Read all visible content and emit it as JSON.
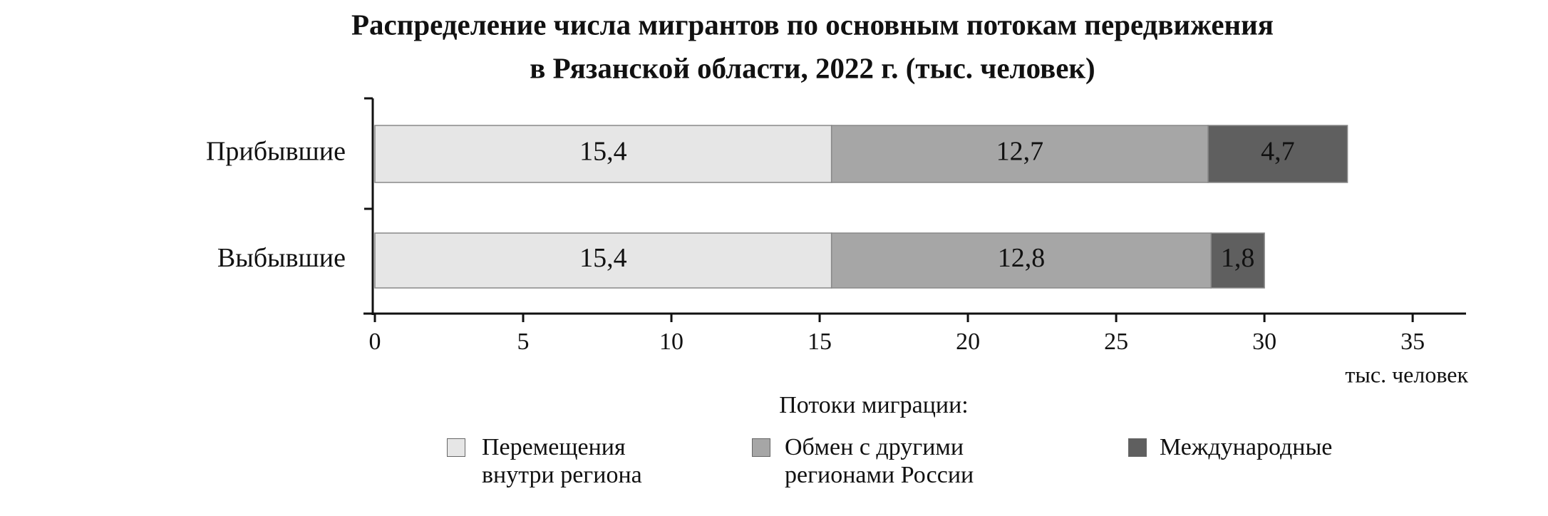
{
  "chart_data": {
    "type": "stacked-bar-horizontal",
    "title": "Распределение числа мигрантов по основным потокам передвижения",
    "subtitle": "в Рязанской области, 2022 г. (тыс. человек)",
    "categories": [
      "Прибывшие",
      "Выбывшие"
    ],
    "series": [
      {
        "name": "Перемещения внутри региона",
        "color": "#e6e6e6",
        "values": [
          15.4,
          15.4
        ],
        "value_labels": [
          "15,4",
          "15,4"
        ]
      },
      {
        "name": "Обмен с другими регионами России",
        "color": "#a6a6a6",
        "values": [
          12.7,
          12.8
        ],
        "value_labels": [
          "12,7",
          "12,8"
        ]
      },
      {
        "name": "Международные",
        "color": "#5f5f5f",
        "values": [
          4.7,
          1.8
        ],
        "value_labels": [
          "4,7",
          "1,8"
        ]
      }
    ],
    "xlim": [
      0,
      36.8
    ],
    "xticks": [
      0,
      5,
      10,
      15,
      20,
      25,
      30,
      35
    ],
    "x_label": "тыс. человек",
    "legend_title": "Потоки миграции:"
  }
}
